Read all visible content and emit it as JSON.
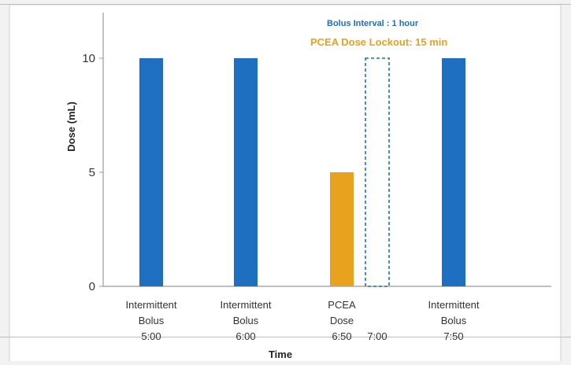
{
  "chart_data": {
    "type": "bar",
    "title": "",
    "xlabel": "Time",
    "ylabel": "Dose (mL)",
    "ylim": [
      0,
      12
    ],
    "yticks": [
      0,
      5,
      10
    ],
    "grid": false,
    "colors": {
      "bolus": "#1f6fc1",
      "pcea": "#e8a21d",
      "lockout_outline": "#1f6fc1"
    },
    "bars": [
      {
        "label_lines": [
          "Intermittent",
          "Bolus",
          "5:00"
        ],
        "value": 10,
        "kind": "bolus"
      },
      {
        "label_lines": [
          "Intermittent",
          "Bolus",
          "6:00"
        ],
        "value": 10,
        "kind": "bolus"
      },
      {
        "label_lines": [
          "PCEA",
          "Dose",
          "6:50"
        ],
        "value": 5,
        "kind": "pcea"
      },
      {
        "label_lines": [
          "",
          "",
          "7:00"
        ],
        "value": 10,
        "kind": "lockout"
      },
      {
        "label_lines": [
          "Intermittent",
          "Bolus",
          "7:50"
        ],
        "value": 10,
        "kind": "bolus"
      }
    ],
    "annotations": [
      "Bolus Interval : 1 hour",
      "PCEA Dose Lockout: 15 min"
    ]
  }
}
